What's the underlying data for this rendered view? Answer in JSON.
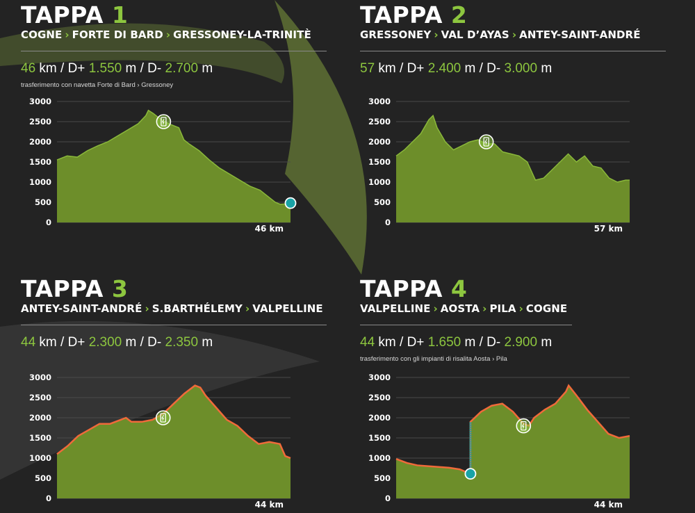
{
  "colors": {
    "accent": "#8dc63f",
    "area": "#6d8e2a",
    "grid": "#4a4a4a",
    "profile_line": "#f06a3a",
    "marker": "#19a3a6",
    "background": "#232323"
  },
  "stages": [
    {
      "tappa_word": "TAPPA",
      "tappa_number": "1",
      "route": [
        "COGNE",
        "FORTE DI BARD",
        "GRESSONEY-LA-TRINITÈ"
      ],
      "stats": {
        "km": "46",
        "km_unit": "km / D+",
        "dplus": "1.550",
        "dplus_unit": "m / D-",
        "dminus": "2.700",
        "dminus_unit": "m"
      },
      "note": "trasferimento con navetta Forte di Bard › Gressoney"
    },
    {
      "tappa_word": "TAPPA",
      "tappa_number": "2",
      "route": [
        "GRESSONEY",
        "VAL D’AYAS",
        "ANTEY-SAINT-ANDRÉ"
      ],
      "stats": {
        "km": "57",
        "km_unit": "km / D+",
        "dplus": "2.400",
        "dplus_unit": "m / D-",
        "dminus": "3.000",
        "dminus_unit": "m"
      },
      "note": ""
    },
    {
      "tappa_word": "TAPPA",
      "tappa_number": "3",
      "route": [
        "ANTEY-SAINT-ANDRÉ",
        "S.BARTHÉLEMY",
        "VALPELLINE"
      ],
      "stats": {
        "km": "44",
        "km_unit": "km / D+",
        "dplus": "2.300",
        "dplus_unit": "m / D-",
        "dminus": "2.350",
        "dminus_unit": "m"
      },
      "note": ""
    },
    {
      "tappa_word": "TAPPA",
      "tappa_number": "4",
      "route": [
        "VALPELLINE",
        "AOSTA",
        "PILA",
        "COGNE"
      ],
      "stats": {
        "km": "44",
        "km_unit": "km / D+",
        "dplus": "1.650",
        "dplus_unit": "m / D-",
        "dminus": "2.900",
        "dminus_unit": "m"
      },
      "note": "trasferimento con gli impianti di risalita Aosta › Pila"
    }
  ],
  "chart_data": [
    {
      "type": "area",
      "ylim": [
        0,
        3000
      ],
      "yticks": [
        0,
        500,
        1000,
        1500,
        2000,
        2500,
        3000
      ],
      "x_end_label": "46 km",
      "xmax": 46,
      "x": [
        0,
        2,
        4,
        6,
        8,
        10,
        12,
        14,
        16,
        17.5,
        18,
        19,
        20,
        22,
        24,
        25,
        26,
        28,
        30,
        32,
        34,
        36,
        38,
        40,
        41,
        42,
        43,
        44,
        45,
        46
      ],
      "y": [
        1550,
        1650,
        1620,
        1780,
        1900,
        2000,
        2150,
        2300,
        2450,
        2650,
        2780,
        2700,
        2600,
        2450,
        2350,
        2050,
        1950,
        1780,
        1550,
        1350,
        1200,
        1050,
        900,
        800,
        700,
        600,
        500,
        450,
        460,
        500
      ],
      "icon_points": [
        {
          "x": 21,
          "y": 2500
        }
      ],
      "end_marker": {
        "x": 46,
        "y": 480
      },
      "line_series": false
    },
    {
      "type": "area",
      "ylim": [
        0,
        3000
      ],
      "yticks": [
        0,
        500,
        1000,
        1500,
        2000,
        2500,
        3000
      ],
      "x_end_label": "57 km",
      "xmax": 57,
      "x": [
        0,
        2,
        4,
        6,
        8,
        9,
        10,
        12,
        14,
        16,
        18,
        20,
        22,
        24,
        26,
        28,
        30,
        32,
        34,
        36,
        38,
        40,
        42,
        44,
        46,
        48,
        50,
        52,
        54,
        56,
        57
      ],
      "y": [
        1650,
        1800,
        2000,
        2200,
        2550,
        2650,
        2350,
        2000,
        1800,
        1900,
        2000,
        2050,
        1950,
        1950,
        1750,
        1700,
        1650,
        1500,
        1050,
        1100,
        1300,
        1500,
        1700,
        1500,
        1650,
        1400,
        1350,
        1100,
        1000,
        1050,
        1050
      ],
      "icon_points": [
        {
          "x": 22,
          "y": 2000
        }
      ],
      "end_marker": null,
      "line_series": false
    },
    {
      "type": "area",
      "ylim": [
        0,
        3000
      ],
      "yticks": [
        0,
        500,
        1000,
        1500,
        2000,
        2500,
        3000
      ],
      "x_end_label": "44 km",
      "xmax": 44,
      "x": [
        0,
        2,
        4,
        6,
        8,
        10,
        12,
        13,
        14,
        16,
        18,
        20,
        22,
        24,
        26,
        27,
        28,
        30,
        32,
        34,
        36,
        38,
        40,
        42,
        43,
        44
      ],
      "y": [
        1100,
        1300,
        1550,
        1700,
        1850,
        1850,
        1950,
        2000,
        1900,
        1900,
        1950,
        2100,
        2350,
        2600,
        2800,
        2750,
        2550,
        2250,
        1950,
        1800,
        1550,
        1350,
        1400,
        1350,
        1050,
        1000
      ],
      "icon_points": [
        {
          "x": 20,
          "y": 2000
        }
      ],
      "end_marker": null,
      "line_series": true
    },
    {
      "type": "area",
      "ylim": [
        0,
        3000
      ],
      "yticks": [
        0,
        500,
        1000,
        1500,
        2000,
        2500,
        3000
      ],
      "x_end_label": "44 km",
      "xmax": 44,
      "x": [
        0,
        2,
        4,
        6,
        8,
        10,
        12,
        14,
        14,
        16,
        18,
        20,
        22,
        24,
        25,
        26,
        28,
        30,
        32,
        32.5,
        34,
        36,
        38,
        40,
        42,
        44
      ],
      "y": [
        980,
        880,
        820,
        800,
        780,
        760,
        720,
        610,
        1900,
        2150,
        2300,
        2350,
        2150,
        1850,
        1800,
        2000,
        2200,
        2350,
        2650,
        2800,
        2550,
        2200,
        1900,
        1600,
        1500,
        1550
      ],
      "icon_points": [
        {
          "x": 24,
          "y": 1800
        }
      ],
      "transfer": {
        "x": 14,
        "from": 610,
        "to": 1900
      },
      "end_marker": null,
      "line_series": true
    }
  ]
}
